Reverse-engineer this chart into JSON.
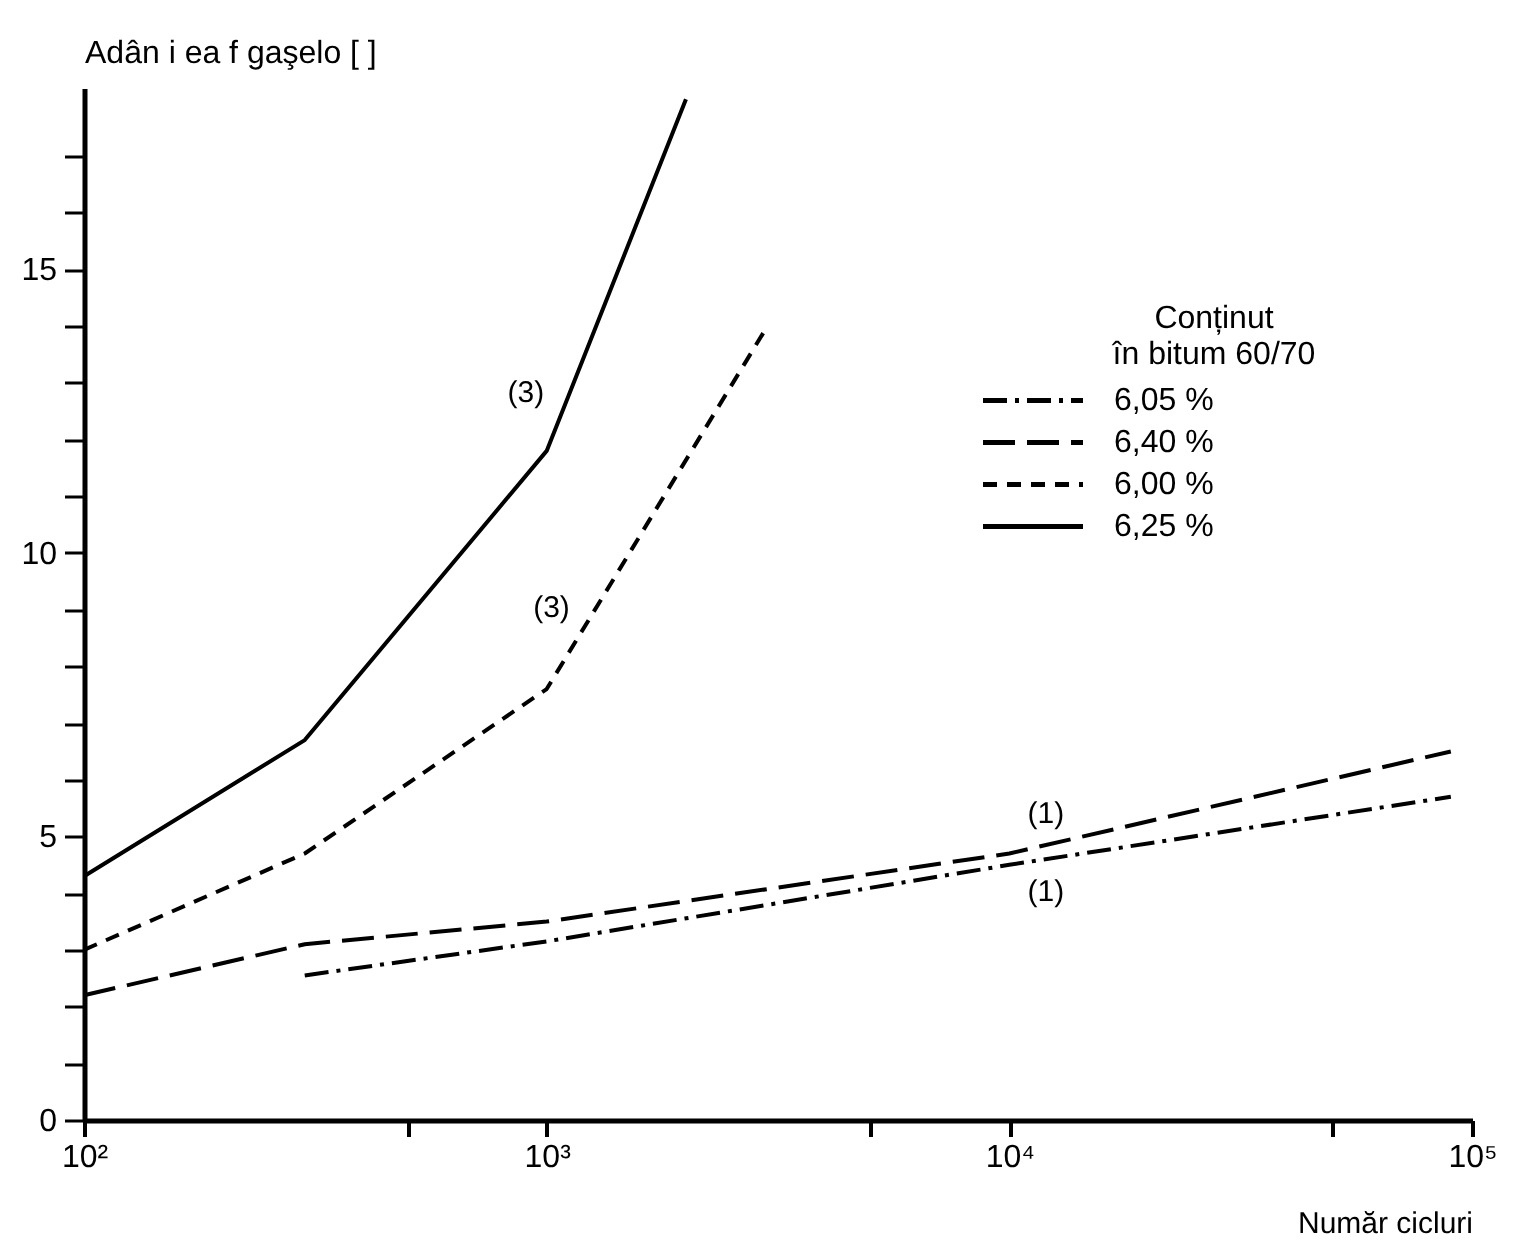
{
  "chart_data": {
    "type": "line",
    "xlabel": "Număr cicluri",
    "ylabel": "Adân i ea f gaşelo [     ]",
    "legend_title": "Conținut\nîn bitum 60/70",
    "log": "x",
    "grid": false,
    "legend": "right",
    "marker": "none",
    "xlim": [
      100,
      100000
    ],
    "xticks": [
      {
        "value": 100,
        "label": "10²"
      },
      {
        "value": 500,
        "label": null
      },
      {
        "value": 1000,
        "label": "10³"
      },
      {
        "value": 5000,
        "label": null
      },
      {
        "value": 10000,
        "label": "10⁴"
      },
      {
        "value": 50000,
        "label": null
      },
      {
        "value": 100000,
        "label": "10⁵"
      }
    ],
    "ylim": [
      0,
      18.2
    ],
    "yticks": [
      0,
      {
        "value": 1,
        "label": null
      },
      {
        "value": 2,
        "label": null
      },
      {
        "value": 3,
        "label": null
      },
      {
        "value": 4,
        "label": null
      },
      5,
      {
        "value": 6,
        "label": null
      },
      {
        "value": 7,
        "label": null
      },
      {
        "value": 8,
        "label": null
      },
      {
        "value": 9,
        "label": null
      },
      10,
      {
        "value": 11,
        "label": null
      },
      {
        "value": 12,
        "label": null
      },
      {
        "value": 13,
        "label": null
      },
      {
        "value": 14,
        "label": null
      },
      15,
      {
        "value": 16,
        "label": null
      },
      {
        "value": 17,
        "label": null
      }
    ],
    "series": [
      {
        "name": "6,05 %",
        "color": "#000000",
        "line_style": "dashdot",
        "x": [
          300,
          1000,
          10000,
          90000
        ],
        "values": [
          2.55,
          3.15,
          4.5,
          5.7
        ]
      },
      {
        "name": "6,40 %",
        "color": "#000000",
        "line_style": "dashed",
        "x": [
          100,
          300,
          1000,
          10000,
          90000
        ],
        "values": [
          2.2,
          3.1,
          3.5,
          4.7,
          6.5
        ]
      },
      {
        "name": "6,00 %",
        "color": "#000000",
        "line_style": "dotted",
        "x": [
          100,
          300,
          1000,
          3000
        ],
        "values": [
          3.0,
          4.7,
          7.6,
          14.0
        ]
      },
      {
        "name": "6,25 %",
        "color": "#000000",
        "line_style": "solid",
        "x": [
          100,
          300,
          1000,
          2000
        ],
        "values": [
          4.3,
          6.7,
          11.8,
          18.0
        ]
      }
    ],
    "annotations": [
      {
        "text": "(3)",
        "x": 1100,
        "y": 12.7
      },
      {
        "text": "(3)",
        "x": 1250,
        "y": 8.9
      },
      {
        "text": "(1)",
        "x": 12000,
        "y": 4.85
      },
      {
        "text": "(1)",
        "x": 12000,
        "y": 4.6
      }
    ]
  }
}
